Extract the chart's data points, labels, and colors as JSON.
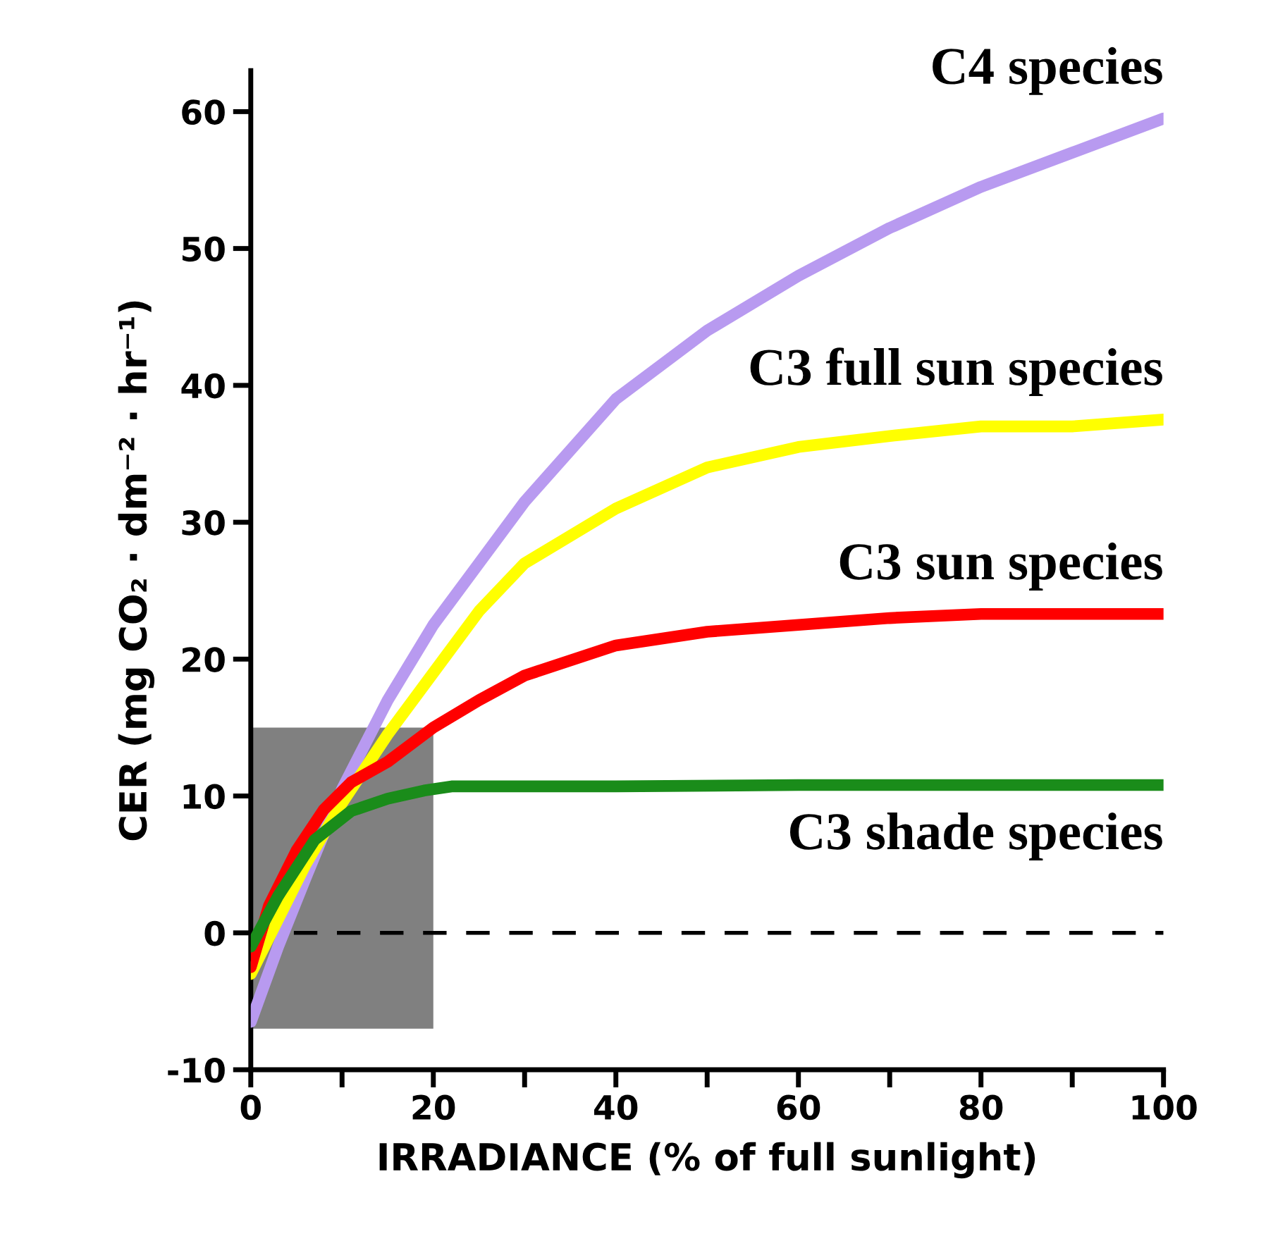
{
  "chart_data": {
    "type": "line",
    "xlabel": "IRRADIANCE (% of full sunlight)",
    "ylabel": "CER (mg CO₂ · dm⁻² · hr⁻¹)",
    "xlim": [
      0,
      100
    ],
    "ylim": [
      -10,
      63
    ],
    "xticks": [
      0,
      {
        "value": 10,
        "label": null
      },
      20,
      {
        "value": 30,
        "label": null
      },
      40,
      {
        "value": 50,
        "label": null
      },
      60,
      {
        "value": 70,
        "label": null
      },
      80,
      {
        "value": 90,
        "label": null
      },
      100
    ],
    "yticks": [
      -10,
      0,
      10,
      20,
      30,
      40,
      50,
      60
    ],
    "grid": false,
    "legend": false,
    "marker": "none",
    "line_style": "solid",
    "ref_lines": [
      {
        "axis": "y",
        "value": 0,
        "color": "#000000",
        "line_style": "dashed"
      }
    ],
    "series": [
      {
        "type": "bar",
        "color": "#808080",
        "x": [
          10
        ],
        "values": [
          22
        ],
        "base": [
          -7
        ]
      },
      {
        "name": "C4 species",
        "color": "#b89af0",
        "x": [
          0,
          3,
          6,
          10,
          15,
          20,
          25,
          30,
          40,
          50,
          60,
          70,
          80,
          90,
          100
        ],
        "values": [
          -6.5,
          -1,
          4,
          10.5,
          17,
          22.5,
          27,
          31.5,
          39,
          44,
          48,
          51.5,
          54.5,
          57,
          59.5
        ]
      },
      {
        "name": "C3 full sun species",
        "color": "#ffff00",
        "x": [
          0,
          3,
          6,
          10,
          15,
          20,
          25,
          30,
          40,
          50,
          60,
          70,
          80,
          90,
          100
        ],
        "values": [
          -3,
          1,
          5,
          9.5,
          14.5,
          19,
          23.5,
          27,
          31,
          34,
          35.5,
          36.3,
          37,
          37,
          37.5
        ]
      },
      {
        "name": "C3 sun species",
        "color": "#ff0000",
        "x": [
          0,
          2,
          5,
          8,
          11,
          15,
          20,
          25,
          30,
          40,
          50,
          60,
          70,
          80,
          90,
          100
        ],
        "values": [
          -2.5,
          2,
          6,
          9,
          11,
          12.5,
          15,
          17,
          18.8,
          21,
          22,
          22.5,
          23,
          23.3,
          23.3,
          23.3
        ]
      },
      {
        "name": "C3 shade species",
        "color": "#1a8c1a",
        "x": [
          0,
          3,
          7,
          11,
          15,
          19,
          22,
          40,
          60,
          80,
          100
        ],
        "values": [
          -1,
          2.7,
          6.8,
          8.9,
          9.8,
          10.4,
          10.7,
          10.7,
          10.8,
          10.8,
          10.8
        ]
      }
    ]
  }
}
